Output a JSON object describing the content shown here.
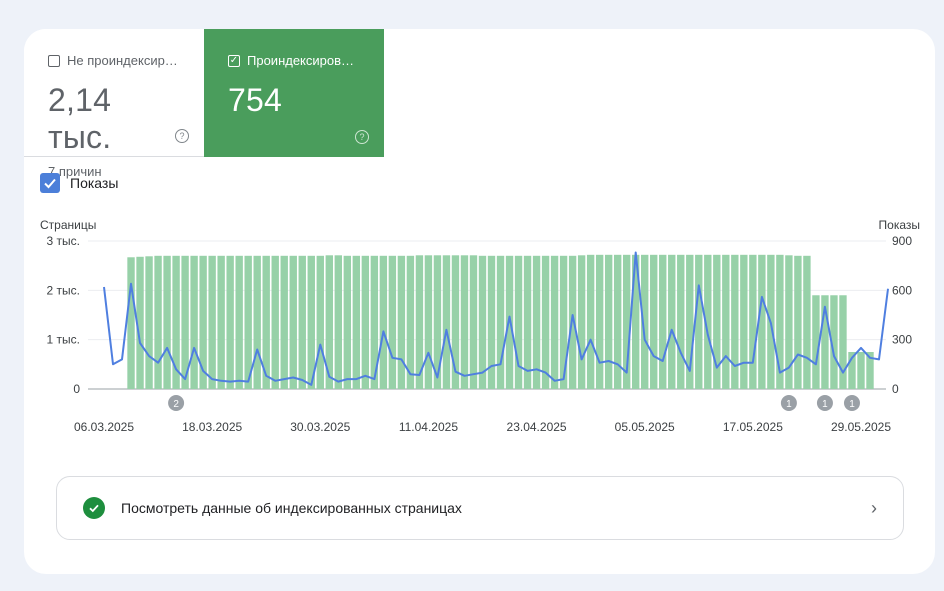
{
  "tiles": {
    "not_indexed": {
      "label": "Не проиндексир…",
      "value": "2,14 тыс.",
      "sub": "7 причин"
    },
    "indexed": {
      "label": "Проиндексиров…",
      "value": "754"
    }
  },
  "metric_toggle": {
    "label": "Показы",
    "checked": true
  },
  "link": {
    "label": "Посмотреть данные об индексированных страницах"
  },
  "colors": {
    "bars": "#97d1a8",
    "line": "#4f7fe0",
    "indexed_tile": "#4a9d5c",
    "ok": "#1e8e3e"
  },
  "chart_data": {
    "type": "bar",
    "left_axis_title": "Страницы",
    "right_axis_title": "Показы",
    "left_ticks": [
      "3 тыс.",
      "2 тыс.",
      "1 тыс.",
      "0"
    ],
    "right_ticks": [
      "900",
      "600",
      "300",
      "0"
    ],
    "left_ylim": [
      0,
      3000
    ],
    "right_ylim": [
      0,
      900
    ],
    "x_tick_labels": [
      "06.03.2025",
      "18.03.2025",
      "30.03.2025",
      "11.04.2025",
      "23.04.2025",
      "05.05.2025",
      "17.05.2025",
      "29.05.2025"
    ],
    "start_date": "06.03.2025",
    "series": [
      {
        "name": "Страницы",
        "type": "bar",
        "values": [
          null,
          null,
          null,
          2670,
          2680,
          2690,
          2700,
          2700,
          2700,
          2700,
          2700,
          2700,
          2700,
          2700,
          2700,
          2700,
          2700,
          2700,
          2700,
          2700,
          2700,
          2700,
          2700,
          2700,
          2700,
          2710,
          2710,
          2700,
          2700,
          2700,
          2700,
          2700,
          2700,
          2700,
          2700,
          2710,
          2710,
          2710,
          2710,
          2710,
          2710,
          2710,
          2700,
          2700,
          2700,
          2700,
          2700,
          2700,
          2700,
          2700,
          2700,
          2700,
          2700,
          2710,
          2720,
          2720,
          2720,
          2720,
          2720,
          2720,
          2720,
          2720,
          2720,
          2720,
          2720,
          2720,
          2720,
          2720,
          2720,
          2720,
          2720,
          2720,
          2720,
          2720,
          2720,
          2720,
          2710,
          2700,
          2700,
          1900,
          1900,
          1900,
          1900,
          750,
          750,
          750
        ]
      },
      {
        "name": "Показы",
        "type": "line",
        "values": [
          620,
          150,
          180,
          640,
          280,
          200,
          160,
          250,
          120,
          60,
          250,
          110,
          60,
          50,
          45,
          50,
          45,
          240,
          80,
          50,
          60,
          70,
          55,
          25,
          270,
          75,
          45,
          60,
          60,
          80,
          60,
          350,
          190,
          180,
          90,
          85,
          220,
          70,
          360,
          105,
          80,
          90,
          100,
          140,
          150,
          440,
          140,
          110,
          120,
          100,
          50,
          60,
          450,
          180,
          300,
          160,
          170,
          150,
          100,
          830,
          300,
          200,
          170,
          360,
          220,
          110,
          630,
          330,
          130,
          200,
          140,
          160,
          160,
          560,
          400,
          100,
          130,
          210,
          190,
          150,
          500,
          200,
          100,
          190,
          250,
          190,
          180,
          610
        ]
      }
    ],
    "annotations": [
      {
        "date": "14.03.2025",
        "label": "2"
      },
      {
        "date": "21.05.2025",
        "label": "1"
      },
      {
        "date": "25.05.2025",
        "label": "1"
      },
      {
        "date": "28.05.2025",
        "label": "1"
      }
    ]
  }
}
